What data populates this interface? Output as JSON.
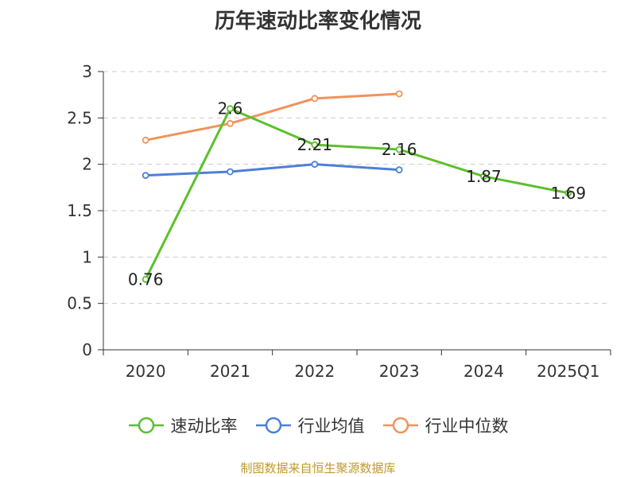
{
  "title": "历年速动比率变化情况",
  "source": "制图数据来自恒生聚源数据库",
  "chart_data": {
    "type": "line",
    "title": "历年速动比率变化情况",
    "categories": [
      "2020",
      "2021",
      "2022",
      "2023",
      "2024",
      "2025Q1"
    ],
    "ylim": [
      0,
      3
    ],
    "yticks": [
      0,
      0.5,
      1,
      1.5,
      2,
      2.5,
      3
    ],
    "ytick_labels": [
      "0",
      "0.5",
      "1",
      "1.5",
      "2",
      "2.5",
      "3"
    ],
    "grid": true,
    "legend_position": "bottom",
    "series": [
      {
        "name": "速动比率",
        "color": "#5cc02c",
        "values": [
          0.76,
          2.6,
          2.21,
          2.16,
          1.87,
          1.69
        ],
        "labels": [
          "0.76",
          "2.6",
          "2.21",
          "2.16",
          "1.87",
          "1.69"
        ]
      },
      {
        "name": "行业均值",
        "color": "#4e7fd8",
        "values": [
          1.88,
          1.92,
          2.0,
          1.94,
          null,
          null
        ]
      },
      {
        "name": "行业中位数",
        "color": "#f2925c",
        "values": [
          2.26,
          2.44,
          2.71,
          2.76,
          null,
          null
        ]
      }
    ]
  }
}
